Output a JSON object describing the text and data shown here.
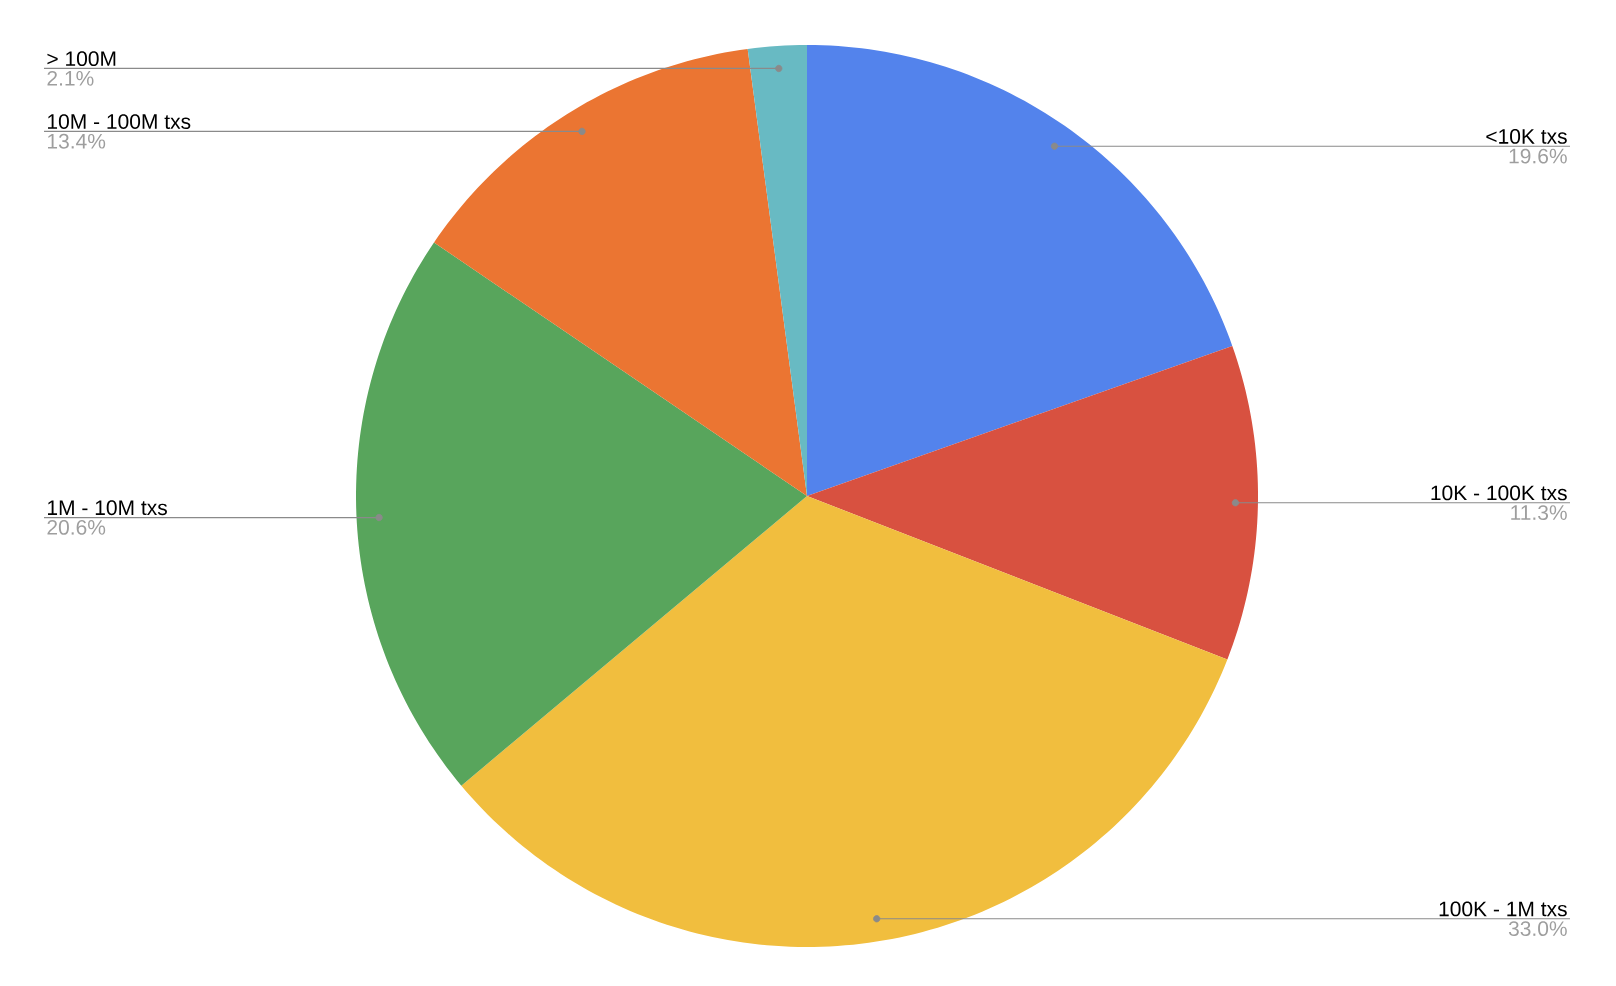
{
  "chart_data": {
    "type": "pie",
    "categories": [
      "<10K txs",
      "10K - 100K txs",
      "100K - 1M txs",
      "1M - 10M txs",
      "10M - 100M txs",
      "> 100M"
    ],
    "values": [
      19.6,
      11.3,
      33.0,
      20.6,
      13.4,
      2.1
    ],
    "value_labels": [
      "19.6%",
      "11.3%",
      "33.0%",
      "20.6%",
      "13.4%",
      "2.1%"
    ],
    "colors": [
      "#5383ec",
      "#d85140",
      "#f1be3e",
      "#58a55c",
      "#eb7532",
      "#68bac3"
    ]
  }
}
